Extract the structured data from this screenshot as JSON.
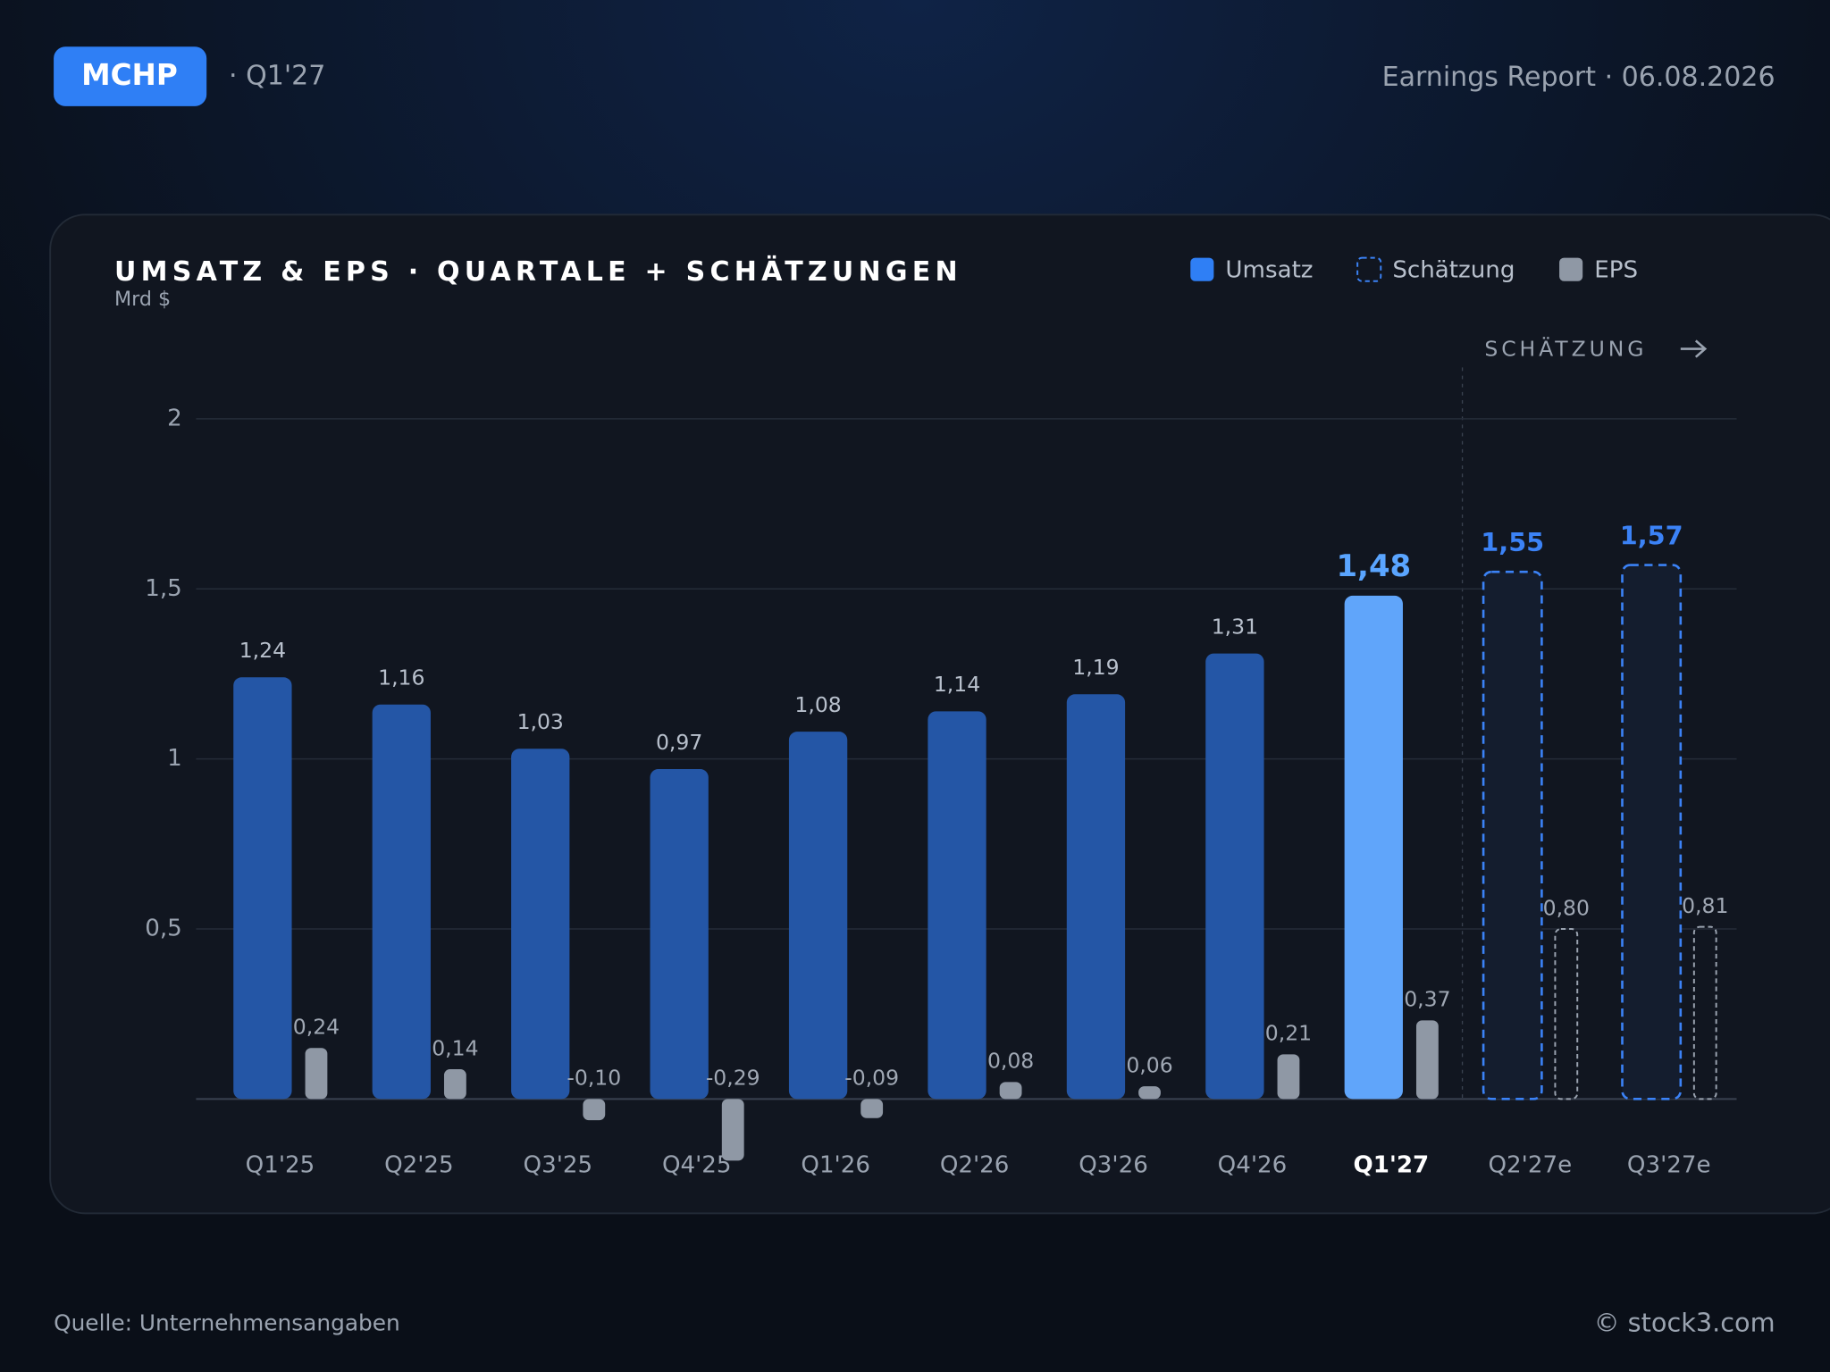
{
  "header": {
    "ticker": "MCHP",
    "period": "· Q1'27",
    "report": "Earnings Report · 06.08.2026"
  },
  "chart_data": {
    "type": "bar",
    "title": "UMSATZ & EPS · QUARTALE + SCHÄTZUNGEN",
    "subtitle": "Mrd $",
    "annotation": "SCHÄTZUNG",
    "categories": [
      "Q1'25",
      "Q2'25",
      "Q3'25",
      "Q4'25",
      "Q1'26",
      "Q2'26",
      "Q3'26",
      "Q4'26",
      "Q1'27",
      "Q2'27e",
      "Q3'27e"
    ],
    "highlight_index": 8,
    "estimate_from": 9,
    "series": [
      {
        "name": "Umsatz",
        "color": "#2f7ff5",
        "bar_color": "#2456a6",
        "highlight_color": "#60a5fa",
        "values": [
          1.24,
          1.16,
          1.03,
          0.97,
          1.08,
          1.14,
          1.19,
          1.31,
          1.48,
          null,
          null
        ],
        "value_labels": [
          "1,24",
          "1,16",
          "1,03",
          "0,97",
          "1,08",
          "1,14",
          "1,19",
          "1,31",
          "1,48",
          null,
          null
        ]
      },
      {
        "name": "Schätzung",
        "color": "#3b82f6",
        "values": [
          null,
          null,
          null,
          null,
          null,
          null,
          null,
          null,
          null,
          1.55,
          1.57
        ],
        "value_labels": [
          null,
          null,
          null,
          null,
          null,
          null,
          null,
          null,
          null,
          "1,55",
          "1,57"
        ]
      },
      {
        "name": "EPS",
        "color": "#8f98a5",
        "axis": "y2",
        "values": [
          0.24,
          0.14,
          -0.1,
          -0.29,
          -0.09,
          0.08,
          0.06,
          0.21,
          0.37,
          0.8,
          0.81
        ],
        "value_labels": [
          "0,24",
          "0,14",
          "-0,10",
          "-0,29",
          "-0,09",
          "0,08",
          "0,06",
          "0,21",
          "0,37",
          "0,80",
          "0,81"
        ]
      }
    ],
    "ylim": [
      0,
      2
    ],
    "yticks": [
      {
        "value": 0.5,
        "label": "0,5"
      },
      1,
      {
        "value": 1.5,
        "label": "1,5"
      },
      2
    ],
    "y2lim": [
      0,
      3.2
    ],
    "grid": true
  },
  "footer": {
    "source": "Quelle: Unternehmensangaben",
    "copyright": "© stock3.com"
  }
}
